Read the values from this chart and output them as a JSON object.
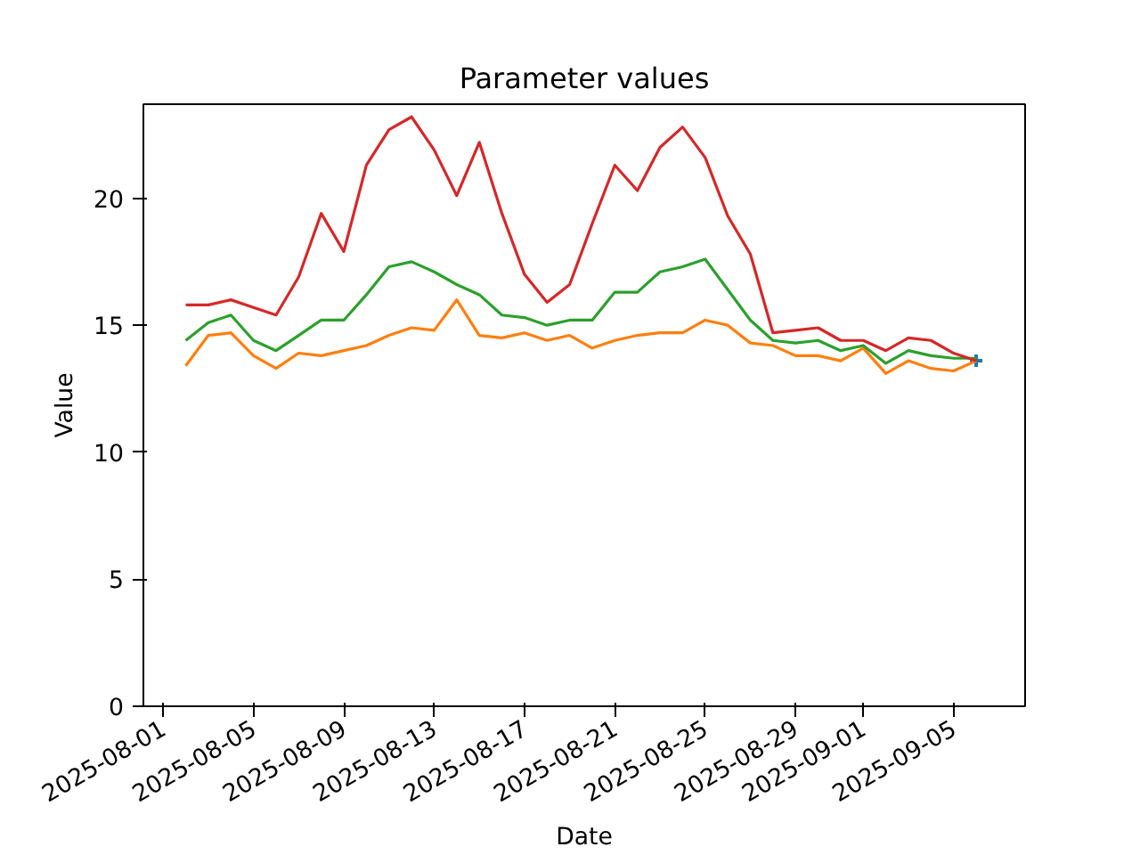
{
  "chart_data": {
    "type": "line",
    "title": "Parameter values",
    "xlabel": "Date",
    "ylabel": "Value",
    "x": [
      "2025-08-02",
      "2025-08-03",
      "2025-08-04",
      "2025-08-05",
      "2025-08-06",
      "2025-08-07",
      "2025-08-08",
      "2025-08-09",
      "2025-08-10",
      "2025-08-11",
      "2025-08-12",
      "2025-08-13",
      "2025-08-14",
      "2025-08-15",
      "2025-08-16",
      "2025-08-17",
      "2025-08-18",
      "2025-08-19",
      "2025-08-20",
      "2025-08-21",
      "2025-08-22",
      "2025-08-23",
      "2025-08-24",
      "2025-08-25",
      "2025-08-26",
      "2025-08-27",
      "2025-08-28",
      "2025-08-29",
      "2025-08-30",
      "2025-08-31",
      "2025-09-01",
      "2025-09-02",
      "2025-09-03",
      "2025-09-04",
      "2025-09-05",
      "2025-09-06"
    ],
    "series": [
      {
        "color": "#1f77b4",
        "type": "scatter",
        "marker": "cross",
        "x": [
          "2025-09-06"
        ],
        "values": [
          13.6
        ]
      },
      {
        "color": "#ff7f0e",
        "values": [
          13.4,
          14.6,
          14.7,
          13.8,
          13.3,
          13.9,
          13.8,
          14.0,
          14.2,
          14.6,
          14.9,
          14.8,
          16.0,
          14.6,
          14.5,
          14.7,
          14.4,
          14.6,
          14.1,
          14.4,
          14.6,
          14.7,
          14.7,
          15.2,
          15.0,
          14.3,
          14.2,
          13.8,
          13.8,
          13.6,
          14.1,
          13.1,
          13.6,
          13.3,
          13.2,
          13.6
        ]
      },
      {
        "color": "#2ca02c",
        "values": [
          14.4,
          15.1,
          15.4,
          14.4,
          14.0,
          14.6,
          15.2,
          15.2,
          16.2,
          17.3,
          17.5,
          17.1,
          16.6,
          16.2,
          15.4,
          15.3,
          15.0,
          15.2,
          15.2,
          16.3,
          16.3,
          17.1,
          17.3,
          17.6,
          16.4,
          15.2,
          14.4,
          14.3,
          14.4,
          14.0,
          14.2,
          13.5,
          14.0,
          13.8,
          13.7,
          13.7
        ]
      },
      {
        "color": "#d62728",
        "values": [
          15.8,
          15.8,
          16.0,
          15.7,
          15.4,
          16.9,
          19.4,
          17.9,
          21.3,
          22.7,
          23.2,
          21.9,
          20.1,
          22.2,
          19.4,
          17.0,
          15.9,
          16.6,
          19.0,
          21.3,
          20.3,
          22.0,
          22.8,
          21.6,
          19.3,
          17.8,
          14.7,
          14.8,
          14.9,
          14.4,
          14.4,
          14.0,
          14.5,
          14.4,
          13.9,
          13.6
        ]
      }
    ],
    "xlim": [
      "2025-07-31T03:00",
      "2025-09-08T04:00"
    ],
    "xticks": [
      "2025-08-01",
      "2025-08-05",
      "2025-08-09",
      "2025-08-13",
      "2025-08-17",
      "2025-08-21",
      "2025-08-25",
      "2025-08-29",
      "2025-09-01",
      "2025-09-05"
    ],
    "ylim": [
      0,
      23.7
    ],
    "yticks": [
      0,
      5,
      10,
      15,
      20
    ],
    "grid": false
  }
}
